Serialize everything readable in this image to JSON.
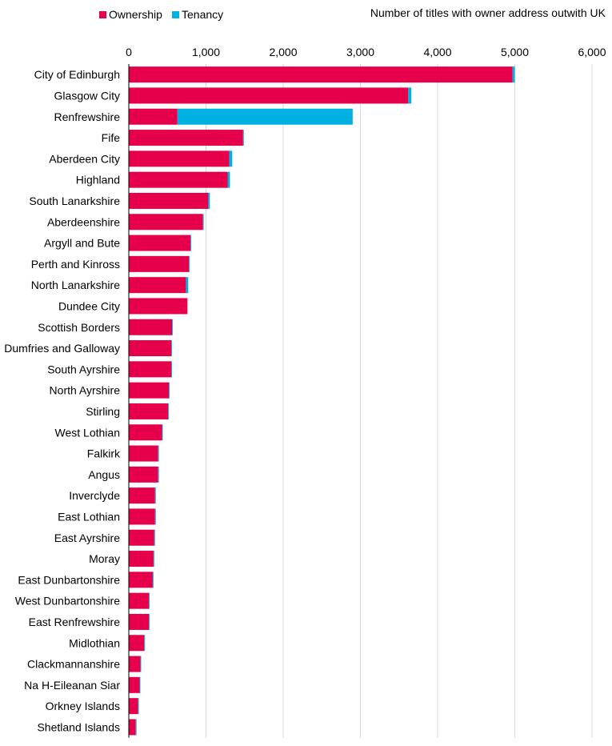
{
  "chart_data": {
    "type": "bar",
    "orientation": "horizontal",
    "stacked": true,
    "title": "Number of titles with owner address outwith UK",
    "xlabel": "",
    "ylabel": "",
    "xlim": [
      0,
      6000
    ],
    "x_ticks": [
      0,
      1000,
      2000,
      3000,
      4000,
      5000,
      6000
    ],
    "x_tick_labels": [
      "0",
      "1,000",
      "2,000",
      "3,000",
      "4,000",
      "5,000",
      "6,000"
    ],
    "x_axis_position": "top",
    "grid": true,
    "legend_position": "top-left",
    "categories": [
      "City of Edinburgh",
      "Glasgow City",
      "Renfrewshire",
      "Fife",
      "Aberdeen City",
      "Highland",
      "South Lanarkshire",
      "Aberdeenshire",
      "Argyll and Bute",
      "Perth and Kinross",
      "North Lanarkshire",
      "Dundee City",
      "Scottish Borders",
      "Dumfries and Galloway",
      "South Ayrshire",
      "North Ayrshire",
      "Stirling",
      "West Lothian",
      "Falkirk",
      "Angus",
      "Inverclyde",
      "East Lothian",
      "East Ayrshire",
      "Moray",
      "East Dunbartonshire",
      "West Dunbartonshire",
      "East Renfrewshire",
      "Midlothian",
      "Clackmannanshire",
      "Na H-Eileanan Siar",
      "Orkney Islands",
      "Shetland Islands"
    ],
    "series": [
      {
        "name": "Ownership",
        "color": "#e6004c",
        "values": [
          4970,
          3620,
          630,
          1480,
          1300,
          1280,
          1030,
          960,
          800,
          780,
          740,
          760,
          560,
          550,
          550,
          520,
          510,
          430,
          380,
          380,
          340,
          340,
          330,
          320,
          310,
          260,
          260,
          200,
          150,
          140,
          120,
          90
        ]
      },
      {
        "name": "Tenancy",
        "color": "#00b0e0",
        "values": [
          30,
          40,
          2270,
          10,
          40,
          30,
          20,
          10,
          10,
          10,
          30,
          0,
          10,
          10,
          10,
          10,
          10,
          10,
          10,
          10,
          10,
          10,
          10,
          10,
          10,
          10,
          10,
          10,
          10,
          10,
          10,
          10
        ]
      }
    ]
  }
}
